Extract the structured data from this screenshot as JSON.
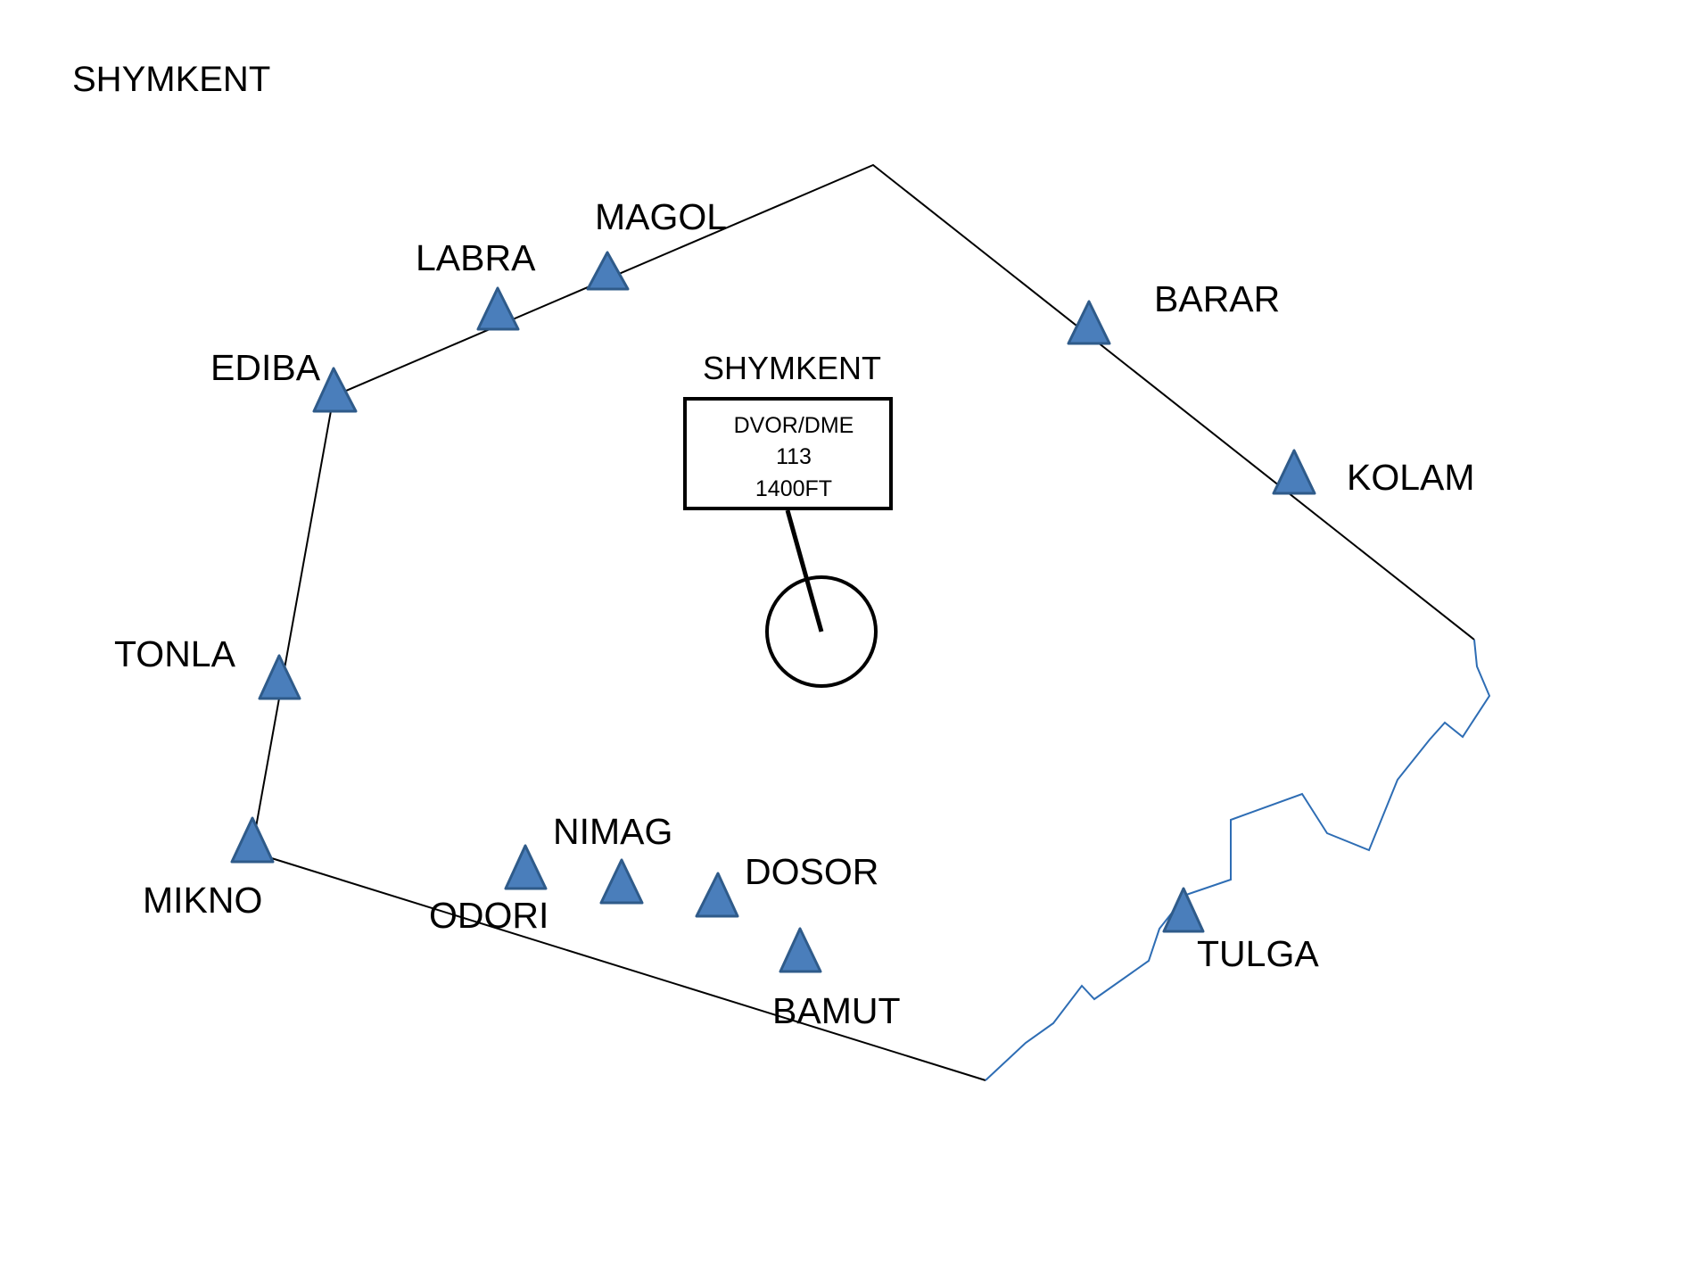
{
  "map": {
    "region_title": "SHYMKENT",
    "colors": {
      "boundary": "#000000",
      "state_border": "#2e6db4",
      "waypoint_fill": "#4a7ebb",
      "waypoint_stroke": "#2f5b8a"
    },
    "navaid": {
      "name": "SHYMKENT",
      "type": "DVOR/DME",
      "frequency": "113",
      "elevation": "1400FT",
      "icon": "vor-circle-icon"
    },
    "waypoints": [
      {
        "id": "magol",
        "name": "MAGOL",
        "icon": "triangle-icon"
      },
      {
        "id": "labra",
        "name": "LABRA",
        "icon": "triangle-icon"
      },
      {
        "id": "ediba",
        "name": "EDIBA",
        "icon": "triangle-icon"
      },
      {
        "id": "tonla",
        "name": "TONLA",
        "icon": "triangle-icon"
      },
      {
        "id": "mikno",
        "name": "MIKNO",
        "icon": "triangle-icon"
      },
      {
        "id": "odori",
        "name": "ODORI",
        "icon": "triangle-icon"
      },
      {
        "id": "nimag",
        "name": "NIMAG",
        "icon": "triangle-icon"
      },
      {
        "id": "dosor",
        "name": "DOSOR",
        "icon": "triangle-icon"
      },
      {
        "id": "bamut",
        "name": "BAMUT",
        "icon": "triangle-icon"
      },
      {
        "id": "tulga",
        "name": "TULGA",
        "icon": "triangle-icon"
      },
      {
        "id": "kolam",
        "name": "KOLAM",
        "icon": "triangle-icon"
      },
      {
        "id": "barar",
        "name": "BARAR",
        "icon": "triangle-icon"
      }
    ]
  }
}
